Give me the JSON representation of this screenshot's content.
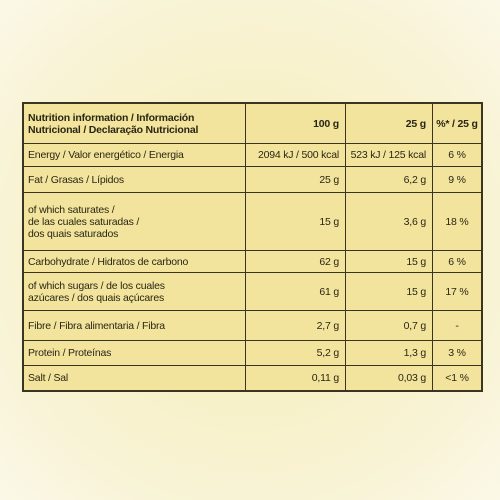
{
  "table": {
    "header": [
      [
        "Nutrition information / Información",
        "Nutricional / Declaração Nutricional"
      ],
      [
        "100 g"
      ],
      [
        "25 g"
      ],
      [
        "%* / 25 g"
      ]
    ],
    "rows": [
      [
        [
          "Energy / Valor energético / Energia"
        ],
        [
          "2094 kJ / 500 kcal"
        ],
        [
          "523 kJ / 125 kcal"
        ],
        [
          "6 %"
        ]
      ],
      [
        [
          "Fat / Grasas / Lípidos"
        ],
        [
          "25 g"
        ],
        [
          "6,2 g"
        ],
        [
          "9 %"
        ]
      ],
      [
        [
          "of which saturates /",
          "de las cuales saturadas /",
          "dos quais saturados"
        ],
        [
          "15 g"
        ],
        [
          "3,6 g"
        ],
        [
          "18 %"
        ]
      ],
      [
        [
          "Carbohydrate / Hidratos de carbono"
        ],
        [
          "62 g"
        ],
        [
          "15 g"
        ],
        [
          "6 %"
        ]
      ],
      [
        [
          "of which sugars / de los cuales",
          "azúcares / dos quais açúcares"
        ],
        [
          "61 g"
        ],
        [
          "15 g"
        ],
        [
          "17 %"
        ]
      ],
      [
        [
          "Fibre / Fibra alimentaria / Fibra"
        ],
        [
          "2,7 g"
        ],
        [
          "0,7 g"
        ],
        [
          "-"
        ]
      ],
      [
        [
          "Protein / Proteínas"
        ],
        [
          "5,2 g"
        ],
        [
          "1,3 g"
        ],
        [
          "3 %"
        ]
      ],
      [
        [
          "Salt / Sal"
        ],
        [
          "0,11 g"
        ],
        [
          "0,03 g"
        ],
        [
          "<1 %"
        ]
      ]
    ]
  }
}
